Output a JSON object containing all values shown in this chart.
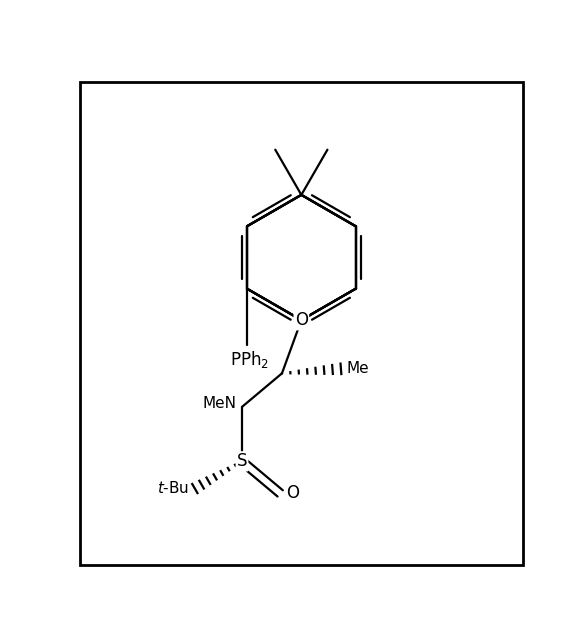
{
  "figure_width": 5.88,
  "figure_height": 6.41,
  "dpi": 100,
  "lw": 1.6,
  "fs": 12,
  "border": [
    0.12,
    0.12,
    9.76,
    10.64
  ]
}
